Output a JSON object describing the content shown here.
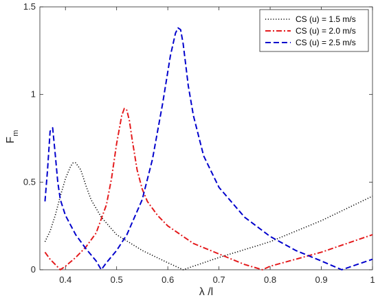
{
  "chart_data": {
    "type": "line",
    "xlabel": "λ /l",
    "ylabel_main": "F",
    "ylabel_sub": "m",
    "xlim": [
      0.35,
      1.0
    ],
    "ylim": [
      0,
      1.5
    ],
    "xticks": [
      "0.4",
      "0.5",
      "0.6",
      "0.7",
      "0.8",
      "0.9",
      "1"
    ],
    "yticks": [
      "0",
      "0.5",
      "1",
      "1.5"
    ],
    "grid": false,
    "legend_position": "top-right",
    "series": [
      {
        "name": "CS (u) = 1.5 m/s",
        "color": "#000000",
        "style": "dotted",
        "x": [
          0.36,
          0.37,
          0.38,
          0.39,
          0.4,
          0.41,
          0.415,
          0.42,
          0.43,
          0.44,
          0.45,
          0.47,
          0.5,
          0.55,
          0.6,
          0.63,
          0.65,
          0.7,
          0.8,
          0.9,
          1.0
        ],
        "y": [
          0.16,
          0.22,
          0.31,
          0.42,
          0.52,
          0.59,
          0.61,
          0.61,
          0.57,
          0.48,
          0.4,
          0.3,
          0.2,
          0.11,
          0.04,
          0.0,
          0.02,
          0.07,
          0.16,
          0.28,
          0.42
        ]
      },
      {
        "name": "CS (u) = 2.0 m/s",
        "color": "#e41a1c",
        "style": "dashdot",
        "x": [
          0.36,
          0.37,
          0.38,
          0.39,
          0.4,
          0.42,
          0.44,
          0.46,
          0.48,
          0.49,
          0.5,
          0.51,
          0.515,
          0.52,
          0.525,
          0.53,
          0.54,
          0.55,
          0.56,
          0.58,
          0.6,
          0.65,
          0.7,
          0.75,
          0.785,
          0.8,
          0.85,
          0.9,
          0.95,
          1.0
        ],
        "y": [
          0.1,
          0.06,
          0.03,
          0.0,
          0.02,
          0.07,
          0.13,
          0.21,
          0.37,
          0.52,
          0.72,
          0.88,
          0.92,
          0.91,
          0.85,
          0.75,
          0.57,
          0.46,
          0.39,
          0.31,
          0.25,
          0.15,
          0.09,
          0.03,
          0.0,
          0.02,
          0.06,
          0.1,
          0.15,
          0.2
        ]
      },
      {
        "name": "CS (u) = 2.5 m/s",
        "color": "#0000cc",
        "style": "dashed",
        "x": [
          0.36,
          0.365,
          0.37,
          0.375,
          0.38,
          0.385,
          0.39,
          0.4,
          0.42,
          0.44,
          0.46,
          0.47,
          0.48,
          0.5,
          0.52,
          0.55,
          0.57,
          0.59,
          0.605,
          0.615,
          0.62,
          0.625,
          0.63,
          0.64,
          0.65,
          0.67,
          0.7,
          0.75,
          0.8,
          0.85,
          0.9,
          0.94,
          0.97,
          1.0
        ],
        "y": [
          0.39,
          0.57,
          0.79,
          0.81,
          0.66,
          0.5,
          0.4,
          0.31,
          0.2,
          0.12,
          0.05,
          0.0,
          0.04,
          0.11,
          0.2,
          0.4,
          0.63,
          0.95,
          1.22,
          1.35,
          1.38,
          1.37,
          1.29,
          1.05,
          0.88,
          0.65,
          0.47,
          0.3,
          0.19,
          0.11,
          0.05,
          0.0,
          0.03,
          0.06
        ]
      }
    ]
  }
}
